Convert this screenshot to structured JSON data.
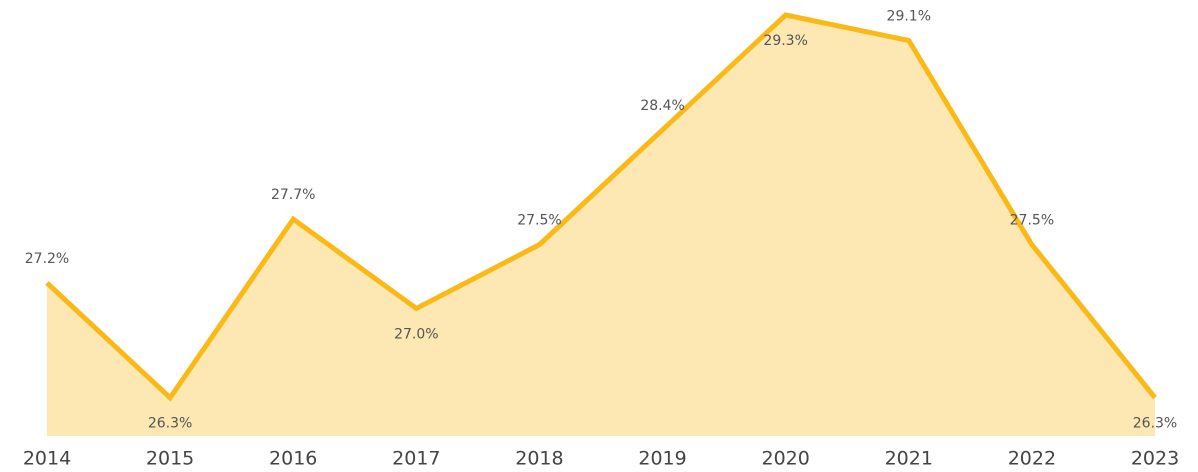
{
  "chart_data": {
    "type": "area",
    "categories": [
      "2014",
      "2015",
      "2016",
      "2017",
      "2018",
      "2019",
      "2020",
      "2021",
      "2022",
      "2023"
    ],
    "values": [
      27.2,
      26.3,
      27.7,
      27.0,
      27.5,
      28.4,
      29.3,
      29.1,
      27.5,
      26.3
    ],
    "value_labels": [
      "27.2%",
      "26.3%",
      "27.7%",
      "27.0%",
      "27.5%",
      "28.4%",
      "29.3%",
      "29.1%",
      "27.5%",
      "26.3%"
    ],
    "color": "#FBB917",
    "fill": "#FDE7B3",
    "ylim": [
      26,
      29.3
    ]
  }
}
